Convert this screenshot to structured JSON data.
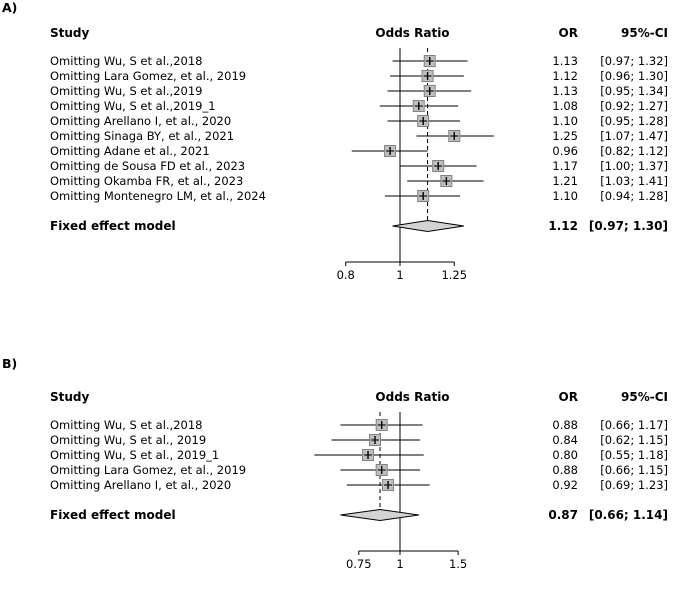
{
  "style": {
    "background": "#ffffff",
    "line_color": "#000000",
    "square_fill": "#bfbfbf",
    "square_stroke": "#828282",
    "diamond_fill": "#d3d3d3",
    "diamond_stroke": "#000000",
    "square_size": 11
  },
  "chart_data": [
    {
      "type": "forest",
      "panel_label": "A)",
      "scale": "log",
      "columns": {
        "study": "Study",
        "plot": "Odds Ratio",
        "or": "OR",
        "ci": "95%-CI"
      },
      "ref_value": 1,
      "axis_ticks": [
        "0.8",
        "1",
        "1.25"
      ],
      "axis_tick_values": [
        0.8,
        1,
        1.25
      ],
      "rows": [
        {
          "study": "Omitting Wu, S et al.,2018",
          "or": 1.13,
          "low": 0.97,
          "high": 1.32,
          "or_label": "1.13",
          "ci_label": "[0.97; 1.32]"
        },
        {
          "study": "Omitting Lara Gomez, et al., 2019",
          "or": 1.12,
          "low": 0.96,
          "high": 1.3,
          "or_label": "1.12",
          "ci_label": "[0.96; 1.30]"
        },
        {
          "study": "Omitting Wu, S et al.,2019",
          "or": 1.13,
          "low": 0.95,
          "high": 1.34,
          "or_label": "1.13",
          "ci_label": "[0.95; 1.34]"
        },
        {
          "study": "Omitting Wu, S et al.,2019_1",
          "or": 1.08,
          "low": 0.92,
          "high": 1.27,
          "or_label": "1.08",
          "ci_label": "[0.92; 1.27]"
        },
        {
          "study": "Omitting Arellano I, et al., 2020",
          "or": 1.1,
          "low": 0.95,
          "high": 1.28,
          "or_label": "1.10",
          "ci_label": "[0.95; 1.28]"
        },
        {
          "study": "Omitting Sinaga BY, et al., 2021",
          "or": 1.25,
          "low": 1.07,
          "high": 1.47,
          "or_label": "1.25",
          "ci_label": "[1.07; 1.47]"
        },
        {
          "study": "Omitting Adane et al., 2021",
          "or": 0.96,
          "low": 0.82,
          "high": 1.12,
          "or_label": "0.96",
          "ci_label": "[0.82; 1.12]"
        },
        {
          "study": "Omitting de Sousa FD et al., 2023",
          "or": 1.17,
          "low": 1.0,
          "high": 1.37,
          "or_label": "1.17",
          "ci_label": "[1.00; 1.37]"
        },
        {
          "study": "Omitting Okamba FR, et al., 2023",
          "or": 1.21,
          "low": 1.03,
          "high": 1.41,
          "or_label": "1.21",
          "ci_label": "[1.03; 1.41]"
        },
        {
          "study": "Omitting Montenegro LM, et al., 2024",
          "or": 1.1,
          "low": 0.94,
          "high": 1.28,
          "or_label": "1.10",
          "ci_label": "[0.94; 1.28]"
        }
      ],
      "summary": {
        "study": "Fixed effect model",
        "or": 1.12,
        "low": 0.97,
        "high": 1.3,
        "or_label": "1.12",
        "ci_label": "[0.97; 1.30]"
      }
    },
    {
      "type": "forest",
      "panel_label": "B)",
      "scale": "log",
      "columns": {
        "study": "Study",
        "plot": "Odds Ratio",
        "or": "OR",
        "ci": "95%-CI"
      },
      "ref_value": 1,
      "axis_ticks": [
        "0.75",
        "1",
        "1.5"
      ],
      "axis_tick_values": [
        0.75,
        1,
        1.5
      ],
      "rows": [
        {
          "study": "Omitting Wu, S et al.,2018",
          "or": 0.88,
          "low": 0.66,
          "high": 1.17,
          "or_label": "0.88",
          "ci_label": "[0.66; 1.17]"
        },
        {
          "study": "Omitting Wu, S et al., 2019",
          "or": 0.84,
          "low": 0.62,
          "high": 1.15,
          "or_label": "0.84",
          "ci_label": "[0.62; 1.15]"
        },
        {
          "study": "Omitting Wu, S et al., 2019_1",
          "or": 0.8,
          "low": 0.55,
          "high": 1.18,
          "or_label": "0.80",
          "ci_label": "[0.55; 1.18]"
        },
        {
          "study": "Omitting Lara Gomez, et al., 2019",
          "or": 0.88,
          "low": 0.66,
          "high": 1.15,
          "or_label": "0.88",
          "ci_label": "[0.66; 1.15]"
        },
        {
          "study": "Omitting Arellano I, et al., 2020",
          "or": 0.92,
          "low": 0.69,
          "high": 1.23,
          "or_label": "0.92",
          "ci_label": "[0.69; 1.23]"
        }
      ],
      "summary": {
        "study": "Fixed effect model",
        "or": 0.87,
        "low": 0.66,
        "high": 1.14,
        "or_label": "0.87",
        "ci_label": "[0.66; 1.14]"
      }
    }
  ]
}
